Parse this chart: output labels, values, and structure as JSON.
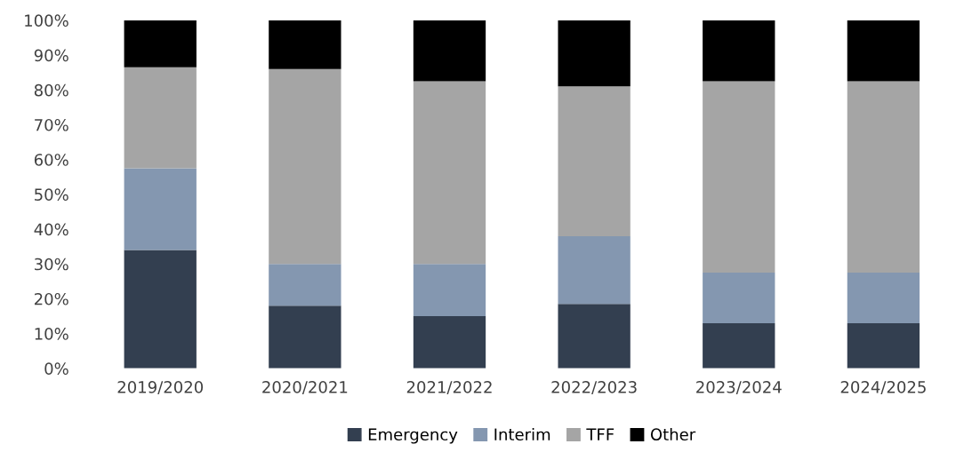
{
  "chart_data": {
    "type": "bar",
    "stacked": true,
    "categories": [
      "2019/2020",
      "2020/2021",
      "2021/2022",
      "2022/2023",
      "2023/2024",
      "2024/2025"
    ],
    "series": [
      {
        "name": "Emergency",
        "color": "#333f50",
        "values": [
          34,
          18,
          15,
          18.5,
          13,
          13
        ]
      },
      {
        "name": "Interim",
        "color": "#8497b0",
        "values": [
          23.5,
          12,
          15,
          19.5,
          14.5,
          14.5
        ]
      },
      {
        "name": "TFF",
        "color": "#a5a5a5",
        "values": [
          29,
          56,
          52.5,
          43,
          55,
          55
        ]
      },
      {
        "name": "Other",
        "color": "#000000",
        "values": [
          13.5,
          14,
          17.5,
          19,
          17.5,
          17.5
        ]
      }
    ],
    "ylim": [
      0,
      100
    ],
    "yticks": [
      {
        "value": 0,
        "label": "0%"
      },
      {
        "value": 10,
        "label": "10%"
      },
      {
        "value": 20,
        "label": "20%"
      },
      {
        "value": 30,
        "label": "30%"
      },
      {
        "value": 40,
        "label": "40%"
      },
      {
        "value": 50,
        "label": "50%"
      },
      {
        "value": 60,
        "label": "60%"
      },
      {
        "value": 70,
        "label": "70%"
      },
      {
        "value": 80,
        "label": "80%"
      },
      {
        "value": 90,
        "label": "90%"
      },
      {
        "value": 100,
        "label": "100%"
      }
    ],
    "grid": false,
    "legend": "bottom"
  }
}
